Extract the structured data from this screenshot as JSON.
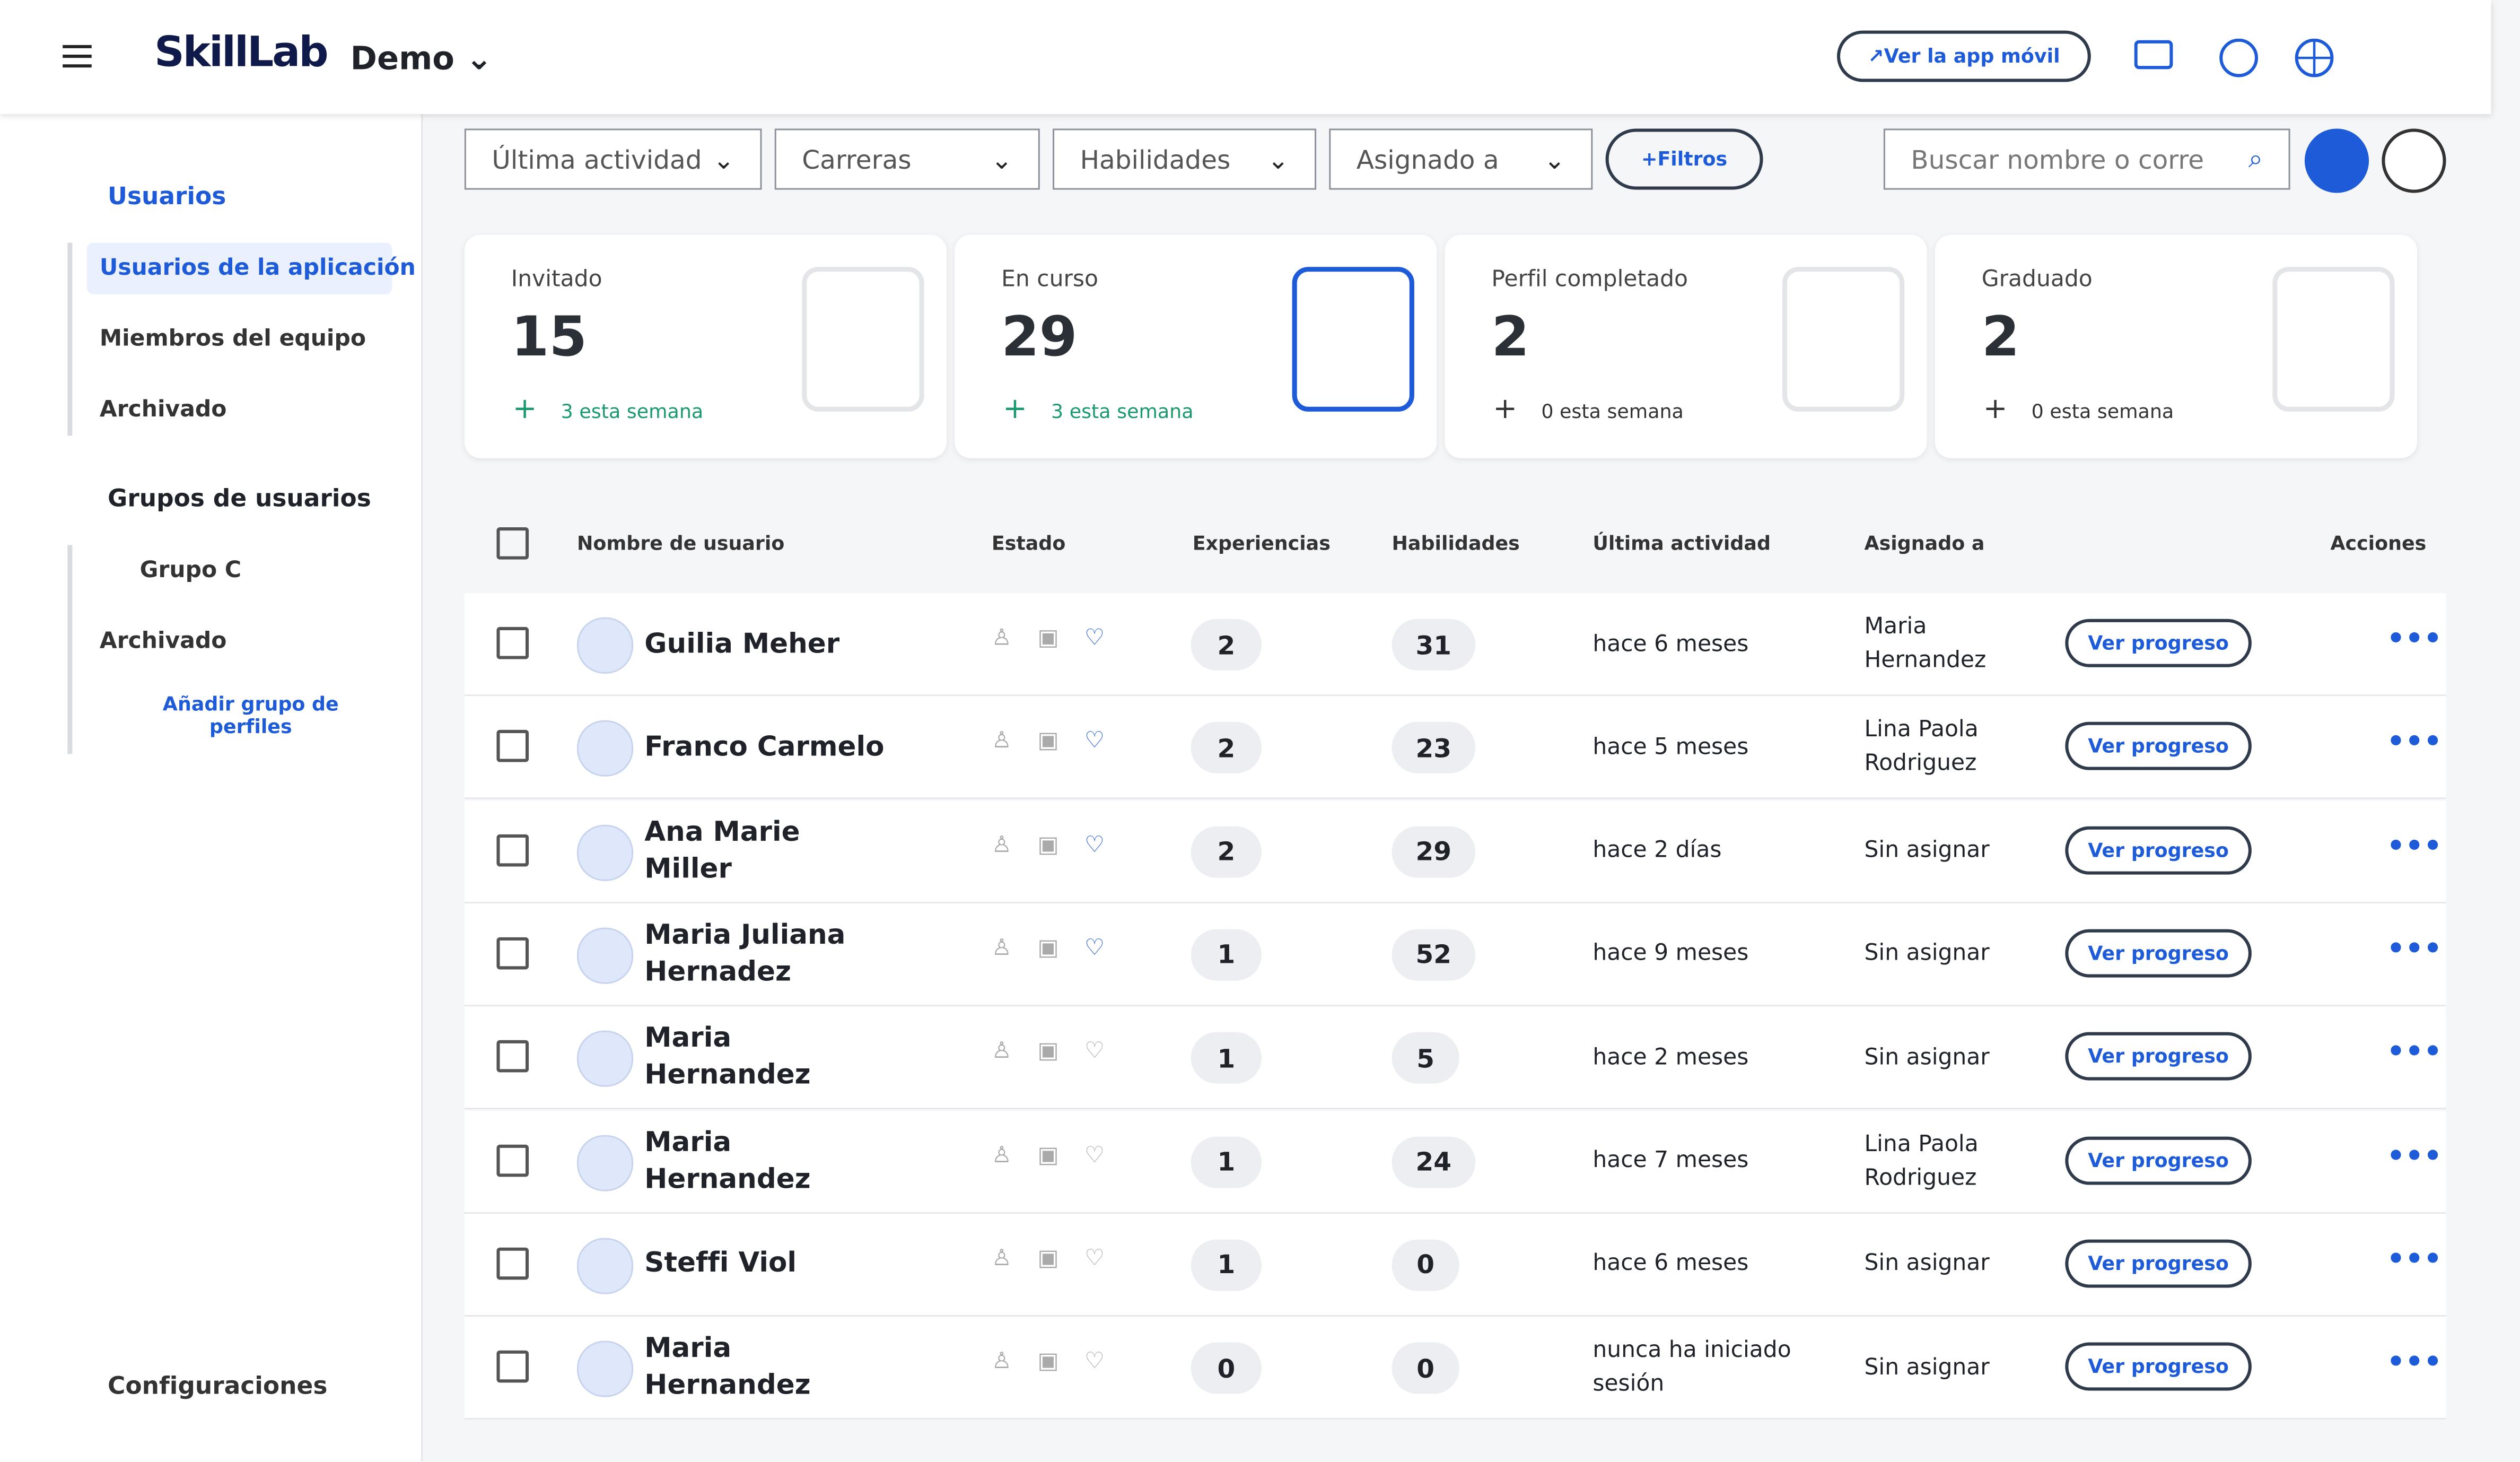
{
  "header": {
    "brand": "SkillLab",
    "org": "Demo",
    "mobile_app": "Ver la app móvil"
  },
  "sidebar": {
    "users": "Usuarios",
    "user_links": [
      "Usuarios de la aplicación",
      "Miembros del equipo",
      "Archivado"
    ],
    "groups": "Grupos de usuarios",
    "group_items": [
      "Grupo C",
      "Archivado"
    ],
    "add_group": "Añadir grupo de perfiles",
    "settings": "Configuraciones"
  },
  "filters": {
    "dropdowns": [
      "Última actividad",
      "Carreras",
      "Habilidades",
      "Asignado a"
    ],
    "filters_button": "Filtros",
    "search_placeholder": "Buscar nombre o corre"
  },
  "stats": [
    {
      "label": "Invitado",
      "value": 15,
      "weekly": "3 esta semana"
    },
    {
      "label": "En curso",
      "value": 29,
      "weekly": "3 esta semana"
    },
    {
      "label": "Perfil completado",
      "value": 2,
      "weekly": "0 esta semana"
    },
    {
      "label": "Graduado",
      "value": 2,
      "weekly": "0 esta semana"
    }
  ],
  "table": {
    "columns": [
      "Nombre de usuario",
      "Estado",
      "Experiencias",
      "Habilidades",
      "Última actividad",
      "Asignado a",
      "Acciones"
    ],
    "action": "Ver progreso",
    "rows": [
      {
        "name": "Guilia Meher",
        "experiences": 2,
        "skills": 31,
        "last_activity": "hace 6 meses",
        "assigned": "Maria Hernandez"
      },
      {
        "name": "Franco Carmelo",
        "experiences": 2,
        "skills": 23,
        "last_activity": "hace 5 meses",
        "assigned": "Lina Paola Rodriguez"
      },
      {
        "name": "Ana Marie Miller",
        "experiences": 2,
        "skills": 29,
        "last_activity": "hace 2 días",
        "assigned": "Sin asignar"
      },
      {
        "name": "Maria Juliana Hernadez",
        "experiences": 1,
        "skills": 52,
        "last_activity": "hace 9 meses",
        "assigned": "Sin asignar"
      },
      {
        "name": "Maria Hernandez",
        "experiences": 1,
        "skills": 5,
        "last_activity": "hace 2 meses",
        "assigned": "Sin asignar"
      },
      {
        "name": "Maria Hernandez",
        "experiences": 1,
        "skills": 24,
        "last_activity": "hace 7 meses",
        "assigned": "Lina Paola Rodriguez"
      },
      {
        "name": "Steffi Viol",
        "experiences": 1,
        "skills": 0,
        "last_activity": "hace 6 meses",
        "assigned": "Sin asignar"
      },
      {
        "name": "Maria Hernandez",
        "experiences": 0,
        "skills": 0,
        "last_activity": "nunca ha iniciado sesión",
        "assigned": "Sin asignar"
      }
    ]
  }
}
